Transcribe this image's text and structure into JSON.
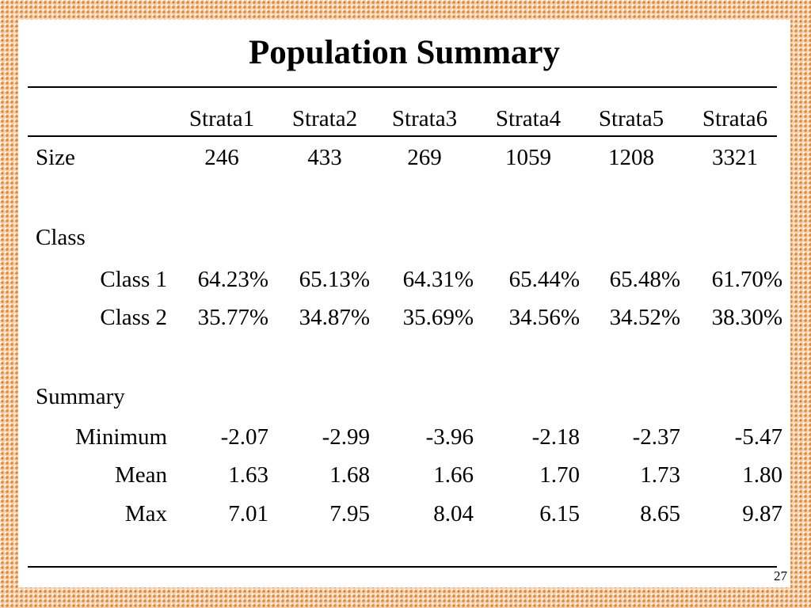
{
  "slide": {
    "title": "Population Summary",
    "page_number": "27"
  },
  "table": {
    "columns": [
      "Strata1",
      "Strata2",
      "Strata3",
      "Strata4",
      "Strata5",
      "Strata6"
    ],
    "rows": [
      {
        "label": "Size",
        "values": [
          "246",
          "433",
          "269",
          "1059",
          "1208",
          "3321"
        ]
      },
      {
        "label": "Class",
        "values": []
      },
      {
        "label": "Class 1",
        "values": [
          "64.23%",
          "65.13%",
          "64.31%",
          "65.44%",
          "65.48%",
          "61.70%"
        ]
      },
      {
        "label": "Class 2",
        "values": [
          "35.77%",
          "34.87%",
          "35.69%",
          "34.56%",
          "34.52%",
          "38.30%"
        ]
      },
      {
        "label": "Summary",
        "values": []
      },
      {
        "label": "Minimum",
        "values": [
          "-2.07",
          "-2.99",
          "-3.96",
          "-2.18",
          "-2.37",
          "-5.47"
        ]
      },
      {
        "label": "Mean",
        "values": [
          "1.63",
          "1.68",
          "1.66",
          "1.70",
          "1.73",
          "1.80"
        ]
      },
      {
        "label": "Max",
        "values": [
          "7.01",
          "7.95",
          "8.04",
          "6.15",
          "8.65",
          "9.87"
        ]
      }
    ]
  }
}
